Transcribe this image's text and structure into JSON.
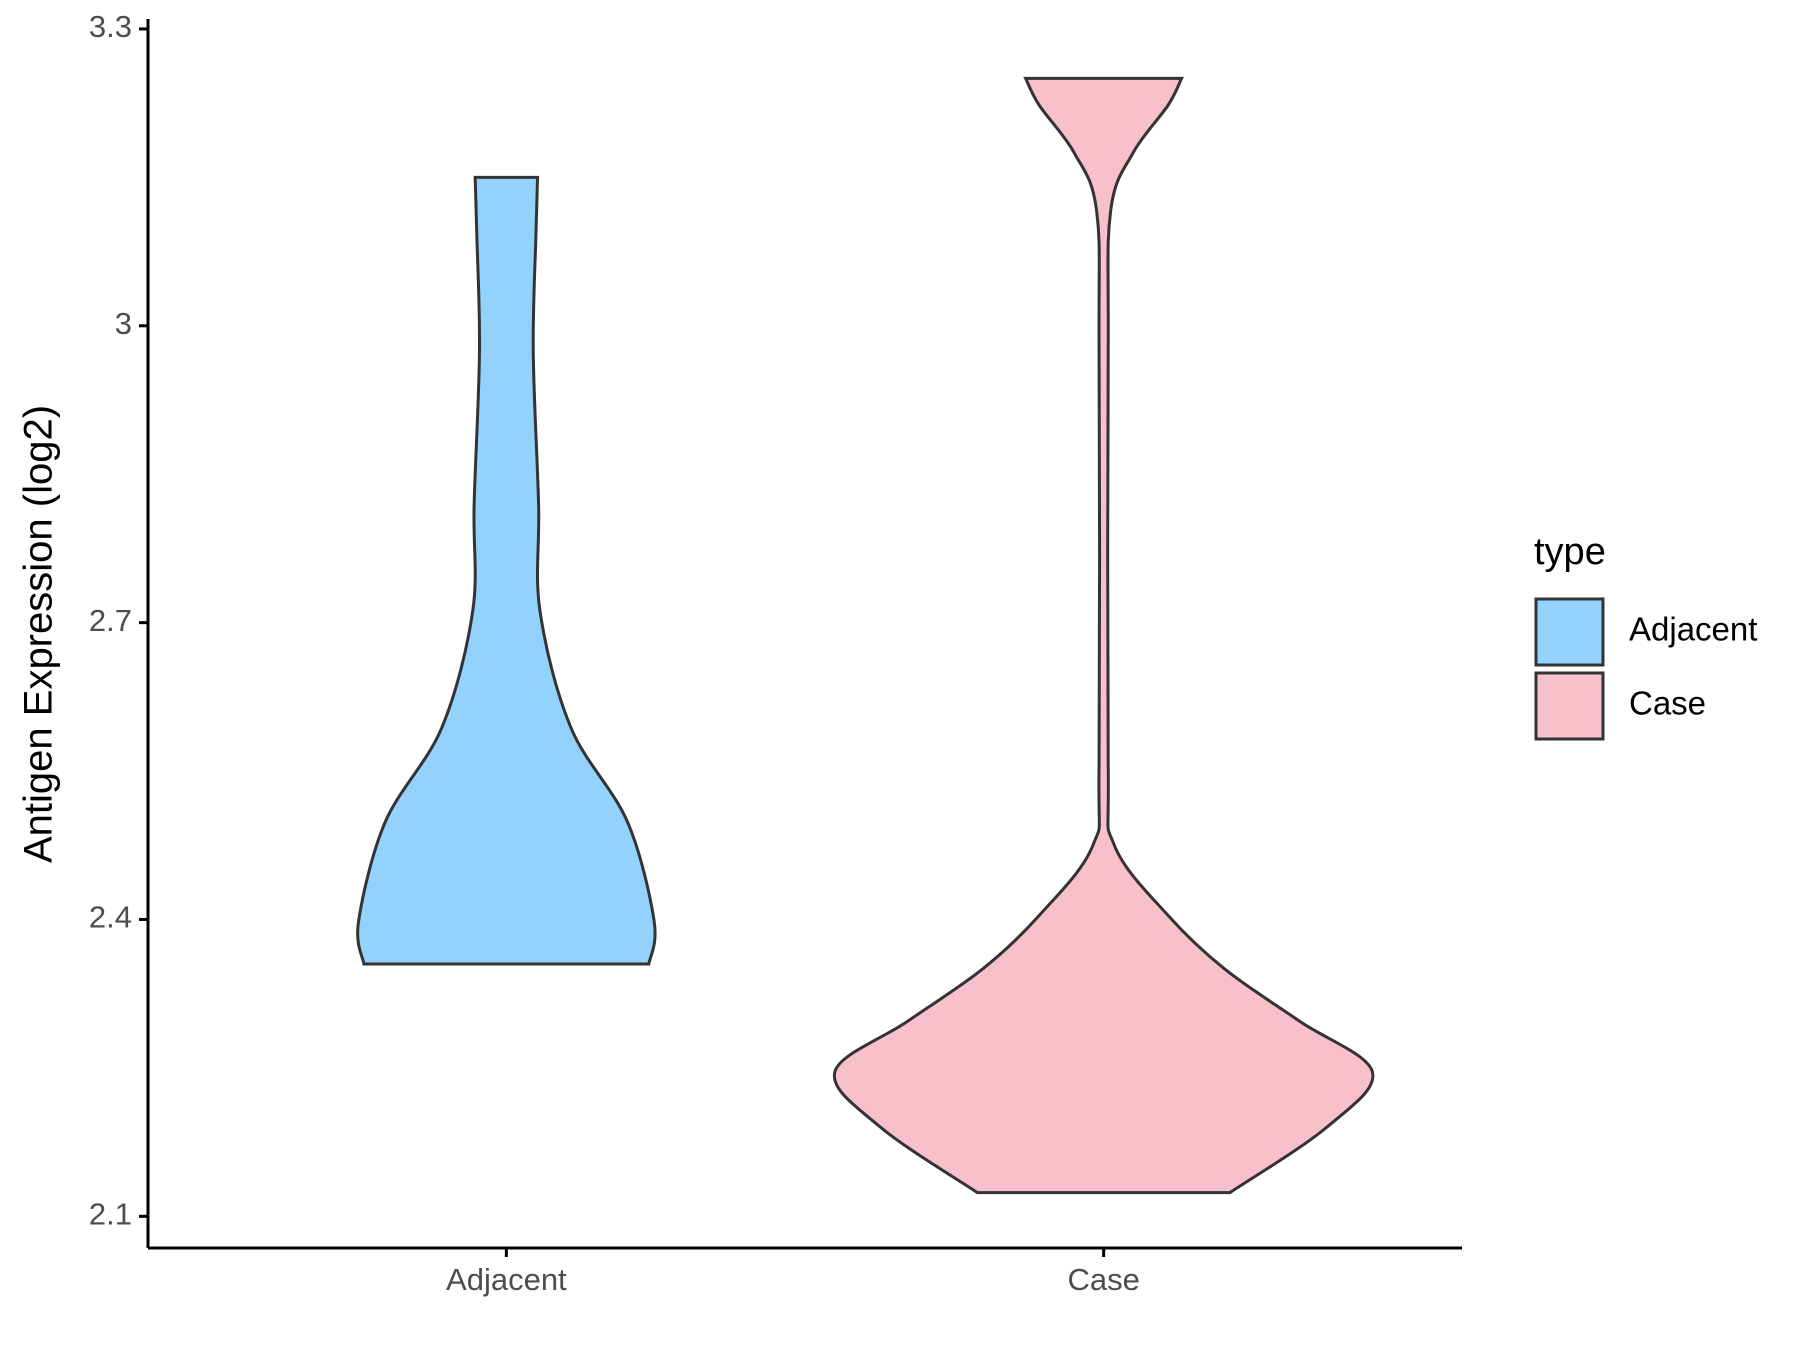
{
  "chart_data": {
    "type": "violin",
    "y_label": "Antigen Expression (log2)",
    "categories": [
      "Adjacent",
      "Case"
    ],
    "ylim": [
      2.068,
      3.306
    ],
    "yticks": [
      2.1,
      2.4,
      2.7,
      3.0,
      3.3
    ],
    "legend_title": "type",
    "legend_position": "right",
    "series": [
      {
        "name": "Adjacent",
        "color": "#92d2fd",
        "y": [
          2.355,
          2.398,
          2.499,
          2.594,
          2.712,
          2.819,
          2.974,
          3.092,
          3.15
        ],
        "density": [
          0.53,
          0.55,
          0.45,
          0.24,
          0.125,
          0.12,
          0.1,
          0.11,
          0.116
        ]
      },
      {
        "name": "Case",
        "color": "#f7c0cb",
        "y": [
          2.124,
          2.19,
          2.246,
          2.297,
          2.35,
          2.404,
          2.475,
          2.558,
          2.974,
          3.116,
          3.175,
          3.223,
          3.25
        ],
        "density": [
          0.47,
          0.83,
          1.0,
          0.73,
          0.45,
          0.24,
          0.04,
          0.017,
          0.017,
          0.026,
          0.11,
          0.24,
          0.29
        ]
      }
    ]
  }
}
